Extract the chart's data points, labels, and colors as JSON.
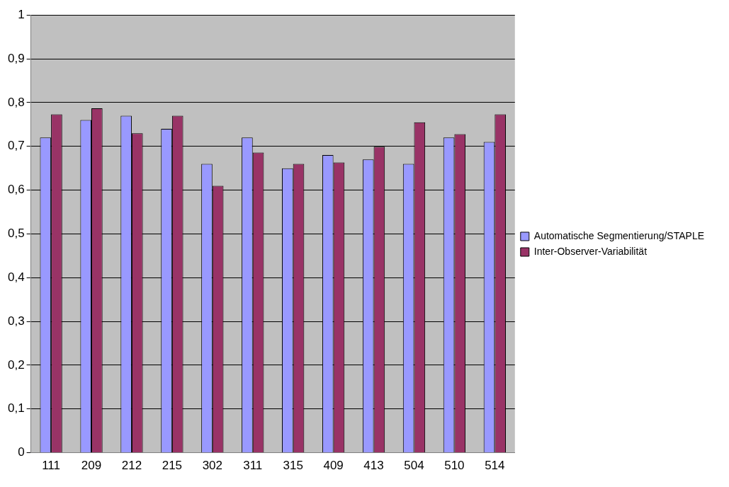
{
  "chart_data": {
    "type": "bar",
    "categories": [
      "111",
      "209",
      "212",
      "215",
      "302",
      "311",
      "315",
      "409",
      "413",
      "504",
      "510",
      "514"
    ],
    "series": [
      {
        "name": "Automatische Segmentierung/STAPLE",
        "color": "#9999ff",
        "values": [
          0.72,
          0.76,
          0.77,
          0.74,
          0.66,
          0.72,
          0.65,
          0.68,
          0.67,
          0.66,
          0.72,
          0.71
        ]
      },
      {
        "name": "Inter-Observer-Variabilität",
        "color": "#993366",
        "values": [
          0.773,
          0.787,
          0.73,
          0.77,
          0.61,
          0.686,
          0.66,
          0.663,
          0.699,
          0.755,
          0.728,
          0.773
        ]
      }
    ],
    "ylim": [
      0,
      1
    ],
    "yticks": [
      {
        "value": 0,
        "label": "0"
      },
      {
        "value": 0.1,
        "label": "0,1"
      },
      {
        "value": 0.2,
        "label": "0,2"
      },
      {
        "value": 0.3,
        "label": "0,3"
      },
      {
        "value": 0.4,
        "label": "0,4"
      },
      {
        "value": 0.5,
        "label": "0,5"
      },
      {
        "value": 0.6,
        "label": "0,6"
      },
      {
        "value": 0.7,
        "label": "0,7"
      },
      {
        "value": 0.8,
        "label": "0,8"
      },
      {
        "value": 0.9,
        "label": "0,9"
      },
      {
        "value": 1,
        "label": "1"
      }
    ],
    "grid": "y",
    "legend": "right"
  }
}
